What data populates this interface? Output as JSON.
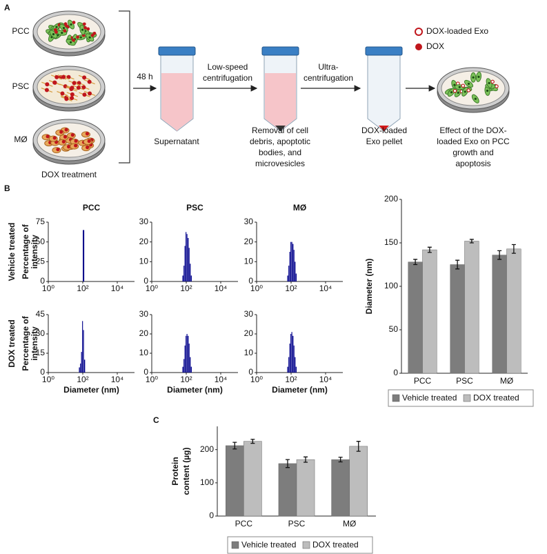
{
  "panel_labels": [
    "A",
    "B",
    "C"
  ],
  "workflow": {
    "dishes": [
      "PCC",
      "PSC",
      "MØ"
    ],
    "dish_caption": "DOX treatment",
    "time": "48 h",
    "steps": [
      [
        "Low-speed",
        "centrifugation"
      ],
      [
        "Ultra-",
        "centrifugation"
      ]
    ],
    "tubes": [
      [
        "Supernatant"
      ],
      [
        "Removal of cell",
        "debris, apoptotic",
        "bodies, and",
        "microvesicles"
      ],
      [
        "DOX-loaded",
        "Exo pellet"
      ]
    ],
    "result": [
      "Effect of the DOX-",
      "loaded Exo on PCC",
      "growth and",
      "apoptosis"
    ],
    "legend": [
      "DOX-loaded Exo",
      "DOX"
    ]
  },
  "row_labels": [
    "Vehicle treated",
    "DOX treated"
  ],
  "chart_data": [
    {
      "type": "histogram",
      "title": "PCC",
      "ylabel": [
        "Percentage of",
        "intensity"
      ],
      "bins": [
        100,
        125
      ],
      "values": [
        65
      ],
      "color": "#00008b",
      "log_x": true,
      "xlim": [
        1,
        100000
      ],
      "xticks": [
        {
          "value": 1,
          "label": "10⁰"
        },
        {
          "value": 100,
          "label": "10²"
        },
        {
          "value": 10000,
          "label": "10⁴"
        }
      ],
      "ylim": [
        0,
        75
      ],
      "yticks": [
        0,
        25,
        50,
        75
      ]
    },
    {
      "type": "histogram",
      "title": "PSC",
      "bins": [
        60,
        70,
        80,
        92,
        105,
        120,
        140,
        160,
        185,
        215
      ],
      "values": [
        3,
        8,
        18,
        25,
        24,
        22,
        17,
        9,
        3
      ],
      "color": "#00008b",
      "log_x": true,
      "xlim": [
        1,
        100000
      ],
      "xticks": [
        {
          "value": 1,
          "label": "10⁰"
        },
        {
          "value": 100,
          "label": "10²"
        },
        {
          "value": 10000,
          "label": "10⁴"
        }
      ],
      "ylim": [
        0,
        30
      ],
      "yticks": [
        0,
        10,
        20,
        30
      ]
    },
    {
      "type": "histogram",
      "title": "MØ",
      "bins": [
        60,
        70,
        80,
        92,
        105,
        120,
        140,
        160,
        185,
        215
      ],
      "values": [
        3,
        8,
        15,
        20,
        20,
        19,
        16,
        10,
        4
      ],
      "color": "#00008b",
      "log_x": true,
      "xlim": [
        1,
        100000
      ],
      "xticks": [
        {
          "value": 1,
          "label": "10⁰"
        },
        {
          "value": 100,
          "label": "10²"
        },
        {
          "value": 10000,
          "label": "10⁴"
        }
      ],
      "ylim": [
        0,
        30
      ],
      "yticks": [
        0,
        10,
        20,
        30
      ]
    },
    {
      "type": "histogram",
      "ylabel": [
        "Percentage of",
        "intensity"
      ],
      "xlabel": "Diameter (nm)",
      "bins": [
        60,
        70,
        80,
        92,
        105,
        120,
        140
      ],
      "values": [
        4,
        7,
        16,
        40,
        33,
        10
      ],
      "color": "#00008b",
      "log_x": true,
      "xlim": [
        1,
        100000
      ],
      "xticks": [
        {
          "value": 1,
          "label": "10⁰"
        },
        {
          "value": 100,
          "label": "10²"
        },
        {
          "value": 10000,
          "label": "10⁴"
        }
      ],
      "ylim": [
        0,
        45
      ],
      "yticks": [
        0,
        15,
        30,
        45
      ]
    },
    {
      "type": "histogram",
      "xlabel": "Diameter (nm)",
      "bins": [
        60,
        70,
        80,
        92,
        105,
        120,
        140,
        160,
        185,
        215
      ],
      "values": [
        3,
        7,
        14,
        19,
        20,
        19,
        15,
        8,
        3
      ],
      "color": "#00008b",
      "log_x": true,
      "xlim": [
        1,
        100000
      ],
      "xticks": [
        {
          "value": 1,
          "label": "10⁰"
        },
        {
          "value": 100,
          "label": "10²"
        },
        {
          "value": 10000,
          "label": "10⁴"
        }
      ],
      "ylim": [
        0,
        30
      ],
      "yticks": [
        0,
        10,
        20,
        30
      ]
    },
    {
      "type": "histogram",
      "xlabel": "Diameter (nm)",
      "bins": [
        60,
        70,
        80,
        92,
        105,
        120,
        140,
        160,
        185,
        215
      ],
      "values": [
        3,
        8,
        15,
        20,
        21,
        19,
        14,
        8,
        3
      ],
      "color": "#00008b",
      "log_x": true,
      "xlim": [
        1,
        100000
      ],
      "xticks": [
        {
          "value": 1,
          "label": "10⁰"
        },
        {
          "value": 100,
          "label": "10²"
        },
        {
          "value": 10000,
          "label": "10⁴"
        }
      ],
      "ylim": [
        0,
        30
      ],
      "yticks": [
        0,
        10,
        20,
        30
      ]
    },
    {
      "type": "bar",
      "ylabel": [
        "Diameter (nm)"
      ],
      "categories": [
        "PCC",
        "PSC",
        "MØ"
      ],
      "series": [
        {
          "name": "Vehicle treated",
          "color": "#7d7d7d",
          "values": [
            128,
            125,
            136
          ],
          "errors": [
            3,
            5,
            5
          ]
        },
        {
          "name": "DOX treated",
          "color": "#bdbdbd",
          "values": [
            142,
            152,
            143
          ],
          "errors": [
            3,
            2,
            5
          ]
        }
      ],
      "ylim": [
        0,
        200
      ],
      "yticks": [
        0,
        50,
        100,
        150,
        200
      ],
      "legend": "bottom"
    },
    {
      "type": "bar",
      "ylabel": [
        "Protein",
        "content (µg)"
      ],
      "categories": [
        "PCC",
        "PSC",
        "MØ"
      ],
      "series": [
        {
          "name": "Vehicle treated",
          "color": "#7d7d7d",
          "values": [
            212,
            158,
            170
          ],
          "errors": [
            10,
            12,
            7
          ]
        },
        {
          "name": "DOX treated",
          "color": "#bdbdbd",
          "values": [
            225,
            170,
            210
          ],
          "errors": [
            6,
            8,
            15
          ]
        }
      ],
      "ylim": [
        0,
        270
      ],
      "yticks": [
        0,
        100,
        200
      ],
      "legend": "bottom"
    }
  ]
}
